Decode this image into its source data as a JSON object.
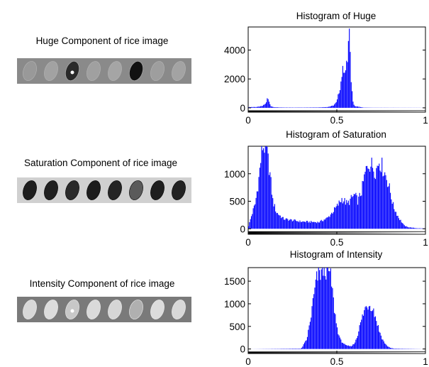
{
  "figure": {
    "panels": [
      {
        "image_title": "Huge Component of rice image",
        "image_tone": "huge"
      },
      {
        "image_title": "Saturation Component of rice image",
        "image_tone": "saturation"
      },
      {
        "image_title": "Intensity Component of rice image",
        "image_tone": "intensity"
      }
    ]
  },
  "chart_data": [
    {
      "type": "bar",
      "title": "Histogram of Huge",
      "xlabel": "",
      "ylabel": "",
      "xlim": [
        0,
        1
      ],
      "ylim": [
        -300,
        5600
      ],
      "xticks": [
        "0",
        "0.5",
        "1"
      ],
      "yticks": [
        0,
        2000,
        4000
      ],
      "color": "#0000ff",
      "colorbar": "grayscale",
      "x": [
        0.0,
        0.05,
        0.08,
        0.1,
        0.11,
        0.12,
        0.13,
        0.15,
        0.2,
        0.3,
        0.4,
        0.45,
        0.48,
        0.5,
        0.52,
        0.53,
        0.54,
        0.55,
        0.56,
        0.57,
        0.58,
        0.59,
        0.6,
        0.65,
        0.7,
        1.0
      ],
      "values": [
        50,
        60,
        120,
        300,
        700,
        350,
        100,
        40,
        20,
        20,
        30,
        60,
        150,
        400,
        1500,
        2400,
        2800,
        2600,
        3200,
        5500,
        2200,
        600,
        120,
        20,
        10,
        5
      ]
    },
    {
      "type": "bar",
      "title": "Histogram of Saturation",
      "xlabel": "",
      "ylabel": "",
      "xlim": [
        0,
        1
      ],
      "ylim": [
        -100,
        1500
      ],
      "xticks": [
        "0",
        "0.5",
        "1"
      ],
      "yticks": [
        0,
        500,
        1000
      ],
      "color": "#0000ff",
      "colorbar": "grayscale",
      "x": [
        0.0,
        0.02,
        0.04,
        0.06,
        0.08,
        0.1,
        0.12,
        0.14,
        0.16,
        0.2,
        0.3,
        0.4,
        0.45,
        0.5,
        0.53,
        0.56,
        0.6,
        0.62,
        0.64,
        0.66,
        0.68,
        0.7,
        0.72,
        0.74,
        0.76,
        0.78,
        0.8,
        0.82,
        0.85,
        0.88,
        0.9,
        0.95,
        1.0
      ],
      "values": [
        20,
        250,
        450,
        900,
        1500,
        1500,
        1100,
        500,
        300,
        180,
        130,
        120,
        200,
        400,
        550,
        450,
        620,
        500,
        680,
        1000,
        1200,
        1150,
        1050,
        1250,
        1100,
        950,
        700,
        400,
        200,
        60,
        30,
        10,
        5
      ]
    },
    {
      "type": "bar",
      "title": "Histogram of Intensity",
      "xlabel": "",
      "ylabel": "",
      "xlim": [
        0,
        1
      ],
      "ylim": [
        -100,
        1800
      ],
      "xticks": [
        "0",
        "0.5",
        "1"
      ],
      "yticks": [
        0,
        500,
        1000,
        1500
      ],
      "color": "#0000ff",
      "colorbar": "grayscale",
      "x": [
        0.0,
        0.3,
        0.33,
        0.35,
        0.37,
        0.39,
        0.41,
        0.43,
        0.45,
        0.47,
        0.48,
        0.5,
        0.52,
        0.55,
        0.58,
        0.6,
        0.62,
        0.64,
        0.66,
        0.68,
        0.7,
        0.72,
        0.74,
        0.76,
        0.78,
        0.8,
        0.82,
        1.0
      ],
      "values": [
        0,
        10,
        200,
        600,
        1150,
        1600,
        1700,
        1780,
        1800,
        1500,
        1100,
        500,
        200,
        80,
        60,
        120,
        350,
        650,
        900,
        1000,
        950,
        700,
        400,
        200,
        80,
        30,
        10,
        0
      ]
    }
  ]
}
